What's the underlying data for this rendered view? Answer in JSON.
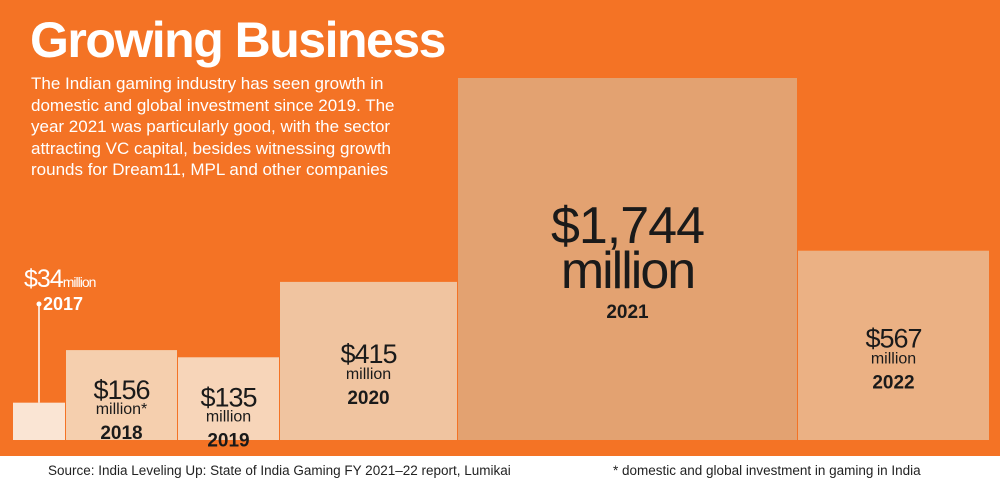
{
  "header": {
    "title": "Growing Business",
    "subtitle": "The Indian gaming industry has seen growth in domestic and global investment since 2019. The year 2021 was particularly good, with the sector attracting VC capital, besides witnessing growth rounds for Dream11, MPL and other companies"
  },
  "footer": {
    "source": "Source: India Leveling Up: State of India Gaming FY 2021–22 report, Lumikai",
    "note": "* domestic and global investment in gaming in India"
  },
  "colors": {
    "background": "#f47325",
    "bars": [
      "#fae5d4",
      "#f5cfae",
      "#f7d5b9",
      "#f0c4a0",
      "#e3a271",
      "#ebb184"
    ],
    "text_dark": "#1a1a1a",
    "text_light": "#ffffff"
  },
  "chart_data": {
    "type": "bar",
    "title": "Growing Business",
    "categories": [
      "2017",
      "2018",
      "2019",
      "2020",
      "2021",
      "2022"
    ],
    "values": [
      34,
      156,
      135,
      415,
      1744,
      567
    ],
    "unit": "million",
    "value_labels": [
      {
        "amount": "$34",
        "unit": "million"
      },
      {
        "amount": "$156",
        "unit": "million*"
      },
      {
        "amount": "$135",
        "unit": "million"
      },
      {
        "amount": "$415",
        "unit": "million"
      },
      {
        "amount": "$1,744",
        "unit": "million"
      },
      {
        "amount": "$567",
        "unit": "million"
      }
    ],
    "ylim": [
      0,
      1744
    ],
    "grid": false,
    "legend": "none"
  }
}
